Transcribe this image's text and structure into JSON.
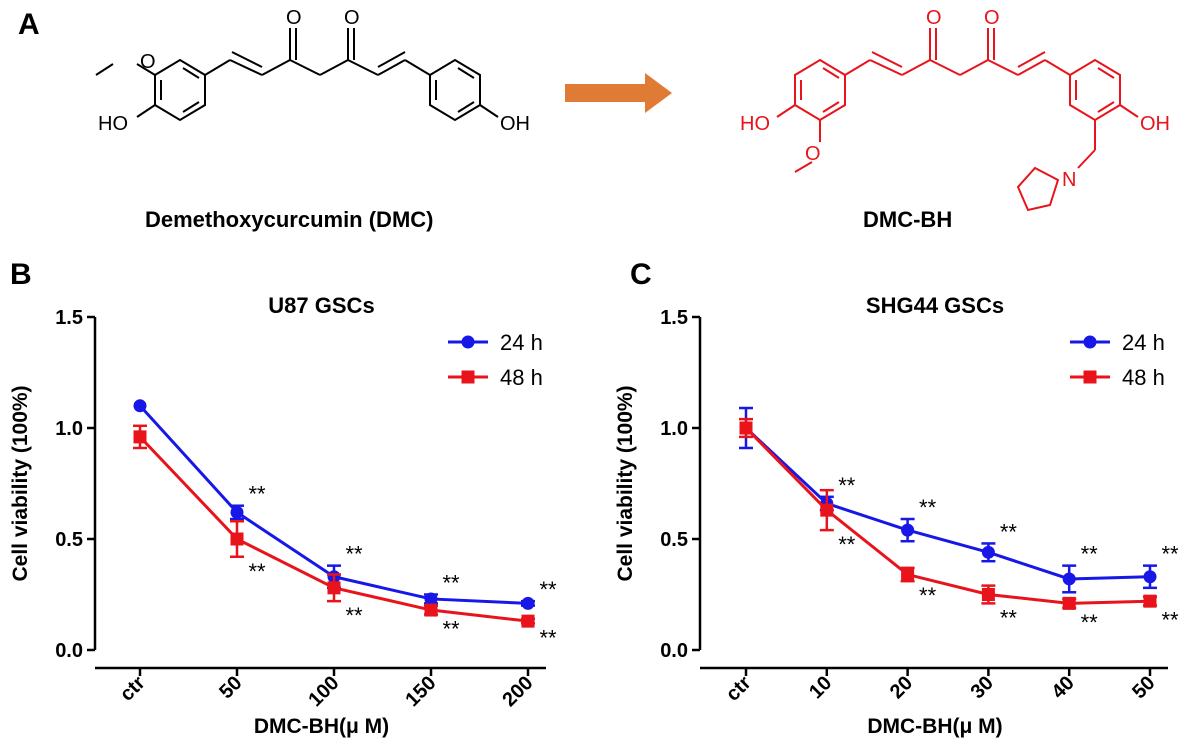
{
  "panels": {
    "a": {
      "letter": "A",
      "left_molecule": {
        "name": "Demethoxycurcumin  (DMC)",
        "atoms": {
          "o1": "O",
          "o2": "O",
          "methoxy_o": "O",
          "ho": "HO",
          "oh": "OH"
        },
        "color": "#000000"
      },
      "right_molecule": {
        "name": "DMC-BH",
        "atoms": {
          "o1": "O",
          "o2": "O",
          "methoxy_o": "O",
          "ho": "HO",
          "oh": "OH",
          "n": "N"
        },
        "color": "#e8131b"
      },
      "arrow_color": "#e07b35"
    },
    "b": {
      "letter": "B"
    },
    "c": {
      "letter": "C"
    }
  },
  "chart_data": [
    {
      "type": "line",
      "title": "U87 GSCs",
      "xlabel": "DMC-BH(μ M)",
      "ylabel": "Cell viability (100%)",
      "categories": [
        "ctr",
        "50",
        "100",
        "150",
        "200"
      ],
      "ylim": [
        0,
        1.5
      ],
      "yticks": [
        "0.0",
        "0.5",
        "1.0",
        "1.5"
      ],
      "legend_position": "top-right",
      "series": [
        {
          "name": "24 h",
          "color": "#1717e8",
          "marker": "circle",
          "values": [
            1.1,
            0.62,
            0.33,
            0.23,
            0.21
          ],
          "errors": [
            0.0,
            0.03,
            0.05,
            0.02,
            0.01
          ]
        },
        {
          "name": "48 h",
          "color": "#e8131b",
          "marker": "square",
          "values": [
            0.96,
            0.5,
            0.28,
            0.18,
            0.13
          ],
          "errors": [
            0.05,
            0.08,
            0.06,
            0.02,
            0.01
          ]
        }
      ],
      "annotations": [
        {
          "series": 0,
          "index": 1,
          "text": "**",
          "side": "above"
        },
        {
          "series": 1,
          "index": 1,
          "text": "**",
          "side": "below"
        },
        {
          "series": 0,
          "index": 2,
          "text": "**",
          "side": "above"
        },
        {
          "series": 1,
          "index": 2,
          "text": "**",
          "side": "below"
        },
        {
          "series": 0,
          "index": 3,
          "text": "**",
          "side": "above"
        },
        {
          "series": 1,
          "index": 3,
          "text": "**",
          "side": "below"
        },
        {
          "series": 0,
          "index": 4,
          "text": "**",
          "side": "above"
        },
        {
          "series": 1,
          "index": 4,
          "text": "**",
          "side": "below"
        }
      ]
    },
    {
      "type": "line",
      "title": "SHG44 GSCs",
      "xlabel": "DMC-BH(μ M)",
      "ylabel": "Cell viability (100%)",
      "categories": [
        "ctr",
        "10",
        "20",
        "30",
        "40",
        "50"
      ],
      "ylim": [
        0,
        1.5
      ],
      "yticks": [
        "0.0",
        "0.5",
        "1.0",
        "1.5"
      ],
      "legend_position": "top-right",
      "series": [
        {
          "name": "24 h",
          "color": "#1717e8",
          "marker": "circle",
          "values": [
            1.0,
            0.66,
            0.54,
            0.44,
            0.32,
            0.33
          ],
          "errors": [
            0.09,
            0.03,
            0.05,
            0.04,
            0.06,
            0.05
          ]
        },
        {
          "name": "48 h",
          "color": "#e8131b",
          "marker": "square",
          "values": [
            1.0,
            0.63,
            0.34,
            0.25,
            0.21,
            0.22
          ],
          "errors": [
            0.04,
            0.09,
            0.03,
            0.04,
            0.02,
            0.02
          ]
        }
      ],
      "annotations": [
        {
          "series": 0,
          "index": 1,
          "text": "**",
          "side": "above"
        },
        {
          "series": 1,
          "index": 1,
          "text": "**",
          "side": "below"
        },
        {
          "series": 0,
          "index": 2,
          "text": "**",
          "side": "above"
        },
        {
          "series": 1,
          "index": 2,
          "text": "**",
          "side": "below"
        },
        {
          "series": 0,
          "index": 3,
          "text": "**",
          "side": "above"
        },
        {
          "series": 1,
          "index": 3,
          "text": "**",
          "side": "below"
        },
        {
          "series": 0,
          "index": 4,
          "text": "**",
          "side": "above"
        },
        {
          "series": 1,
          "index": 4,
          "text": "**",
          "side": "below"
        },
        {
          "series": 0,
          "index": 5,
          "text": "**",
          "side": "above"
        },
        {
          "series": 1,
          "index": 5,
          "text": "**",
          "side": "below"
        }
      ]
    }
  ]
}
